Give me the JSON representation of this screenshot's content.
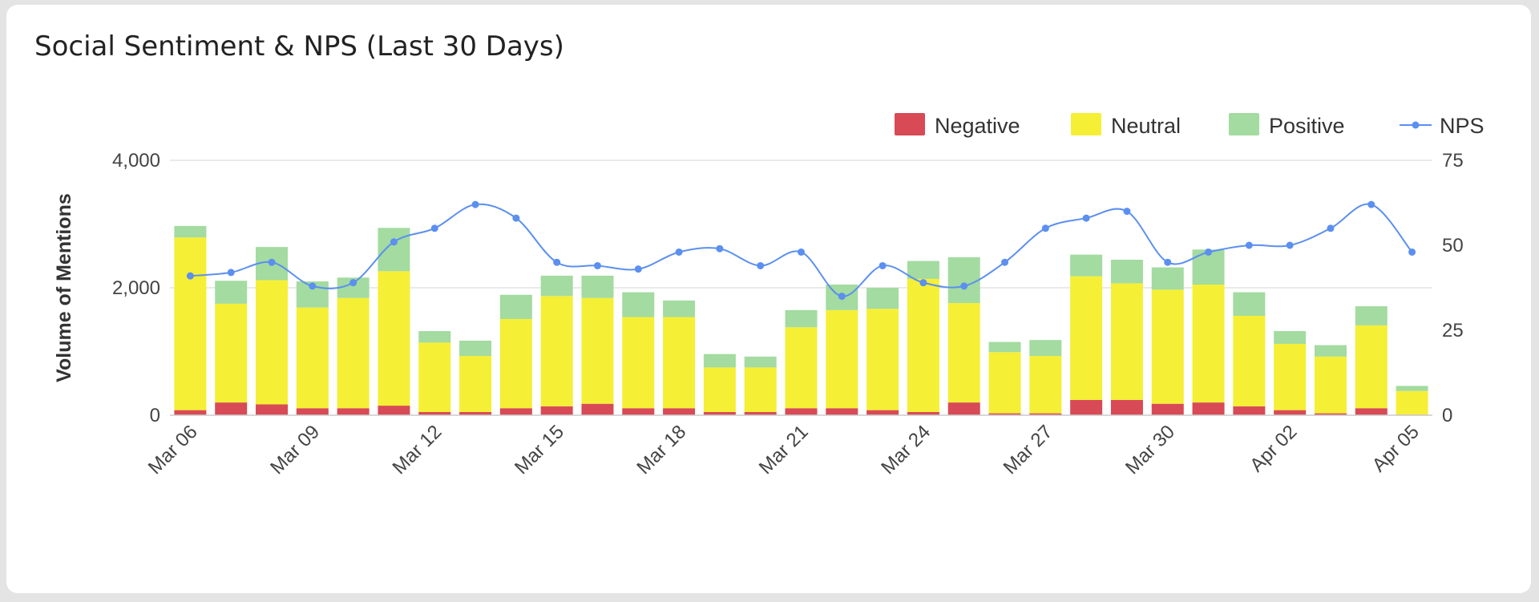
{
  "card": {
    "title": "Social Sentiment & NPS (Last 30 Days)"
  },
  "chart_data": {
    "type": "bar",
    "stacked": true,
    "title": "Social Sentiment & NPS (Last 30 Days)",
    "ylabel": "Volume of Mentions",
    "ylim": [
      0,
      4000
    ],
    "y_ticks": [
      "0",
      "2,000",
      "4,000"
    ],
    "y2lim": [
      0,
      75
    ],
    "y2_ticks": [
      "0",
      "25",
      "50",
      "75"
    ],
    "x_tick_labels": [
      "Mar 06",
      "Mar 09",
      "Mar 12",
      "Mar 15",
      "Mar 18",
      "Mar 21",
      "Mar 24",
      "Mar 27",
      "Mar 30",
      "Apr 02",
      "Apr 05"
    ],
    "x_tick_every": 3,
    "grid": true,
    "legend_position": "top-right",
    "categories": [
      "Mar 06",
      "Mar 07",
      "Mar 08",
      "Mar 09",
      "Mar 10",
      "Mar 11",
      "Mar 12",
      "Mar 13",
      "Mar 14",
      "Mar 15",
      "Mar 16",
      "Mar 17",
      "Mar 18",
      "Mar 19",
      "Mar 20",
      "Mar 21",
      "Mar 22",
      "Mar 23",
      "Mar 24",
      "Mar 25",
      "Mar 26",
      "Mar 27",
      "Mar 28",
      "Mar 29",
      "Mar 30",
      "Mar 31",
      "Apr 01",
      "Apr 02",
      "Apr 03",
      "Apr 04",
      "Apr 05"
    ],
    "series": [
      {
        "name": "Negative",
        "type": "bar",
        "color": "#d84a55",
        "values": [
          80,
          200,
          170,
          110,
          110,
          150,
          50,
          50,
          110,
          140,
          180,
          110,
          110,
          50,
          50,
          110,
          110,
          80,
          50,
          200,
          30,
          30,
          240,
          240,
          180,
          200,
          140,
          80,
          30,
          110,
          10
        ]
      },
      {
        "name": "Neutral",
        "type": "bar",
        "color": "#f5ef36",
        "values": [
          2710,
          1550,
          1950,
          1580,
          1730,
          2110,
          1090,
          880,
          1400,
          1730,
          1660,
          1430,
          1430,
          700,
          700,
          1270,
          1540,
          1590,
          2090,
          1560,
          960,
          900,
          1940,
          1830,
          1790,
          1850,
          1420,
          1040,
          890,
          1300,
          370
        ]
      },
      {
        "name": "Positive",
        "type": "bar",
        "color": "#a3dba0",
        "values": [
          180,
          360,
          520,
          410,
          320,
          680,
          180,
          240,
          380,
          320,
          350,
          390,
          260,
          210,
          170,
          270,
          400,
          330,
          280,
          720,
          160,
          250,
          340,
          370,
          350,
          550,
          370,
          200,
          180,
          300,
          80
        ]
      },
      {
        "name": "NPS",
        "type": "line",
        "axis": "right",
        "color": "#5b8ff0",
        "values": [
          41,
          42,
          45,
          38,
          39,
          51,
          55,
          62,
          58,
          45,
          44,
          43,
          48,
          49,
          44,
          48,
          35,
          44,
          39,
          38,
          45,
          55,
          58,
          60,
          45,
          48,
          50,
          50,
          55,
          62,
          48
        ]
      }
    ]
  }
}
